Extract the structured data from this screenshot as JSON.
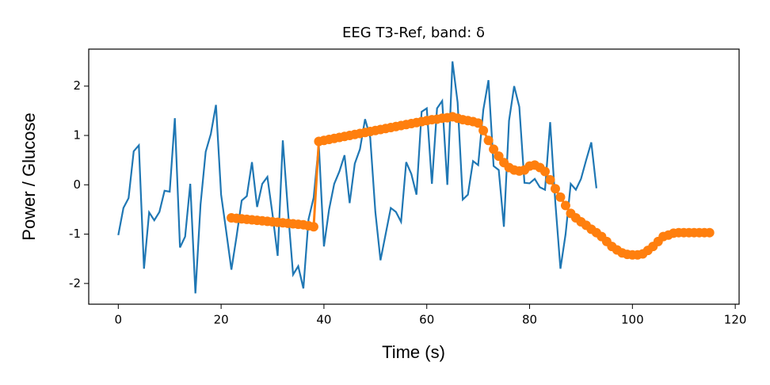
{
  "chart_data": {
    "type": "line",
    "title": "EEG T3-Ref, band: δ",
    "xlabel": "Time (s)",
    "ylabel": "Power / Glucose",
    "xlim": [
      -5.75,
      120.75
    ],
    "ylim": [
      -2.42,
      2.75
    ],
    "xticks": [
      0,
      20,
      40,
      60,
      80,
      100,
      120
    ],
    "yticks": [
      -2,
      -1,
      0,
      1,
      2
    ],
    "series": [
      {
        "color": "#1f77b4",
        "markers": false,
        "x": [
          0,
          1,
          2,
          3,
          4,
          5,
          6,
          7,
          8,
          9,
          10,
          11,
          12,
          13,
          14,
          15,
          16,
          17,
          18,
          19,
          20,
          21,
          22,
          23,
          24,
          25,
          26,
          27,
          28,
          29,
          30,
          31,
          32,
          33,
          34,
          35,
          36,
          37,
          38,
          39,
          40,
          41,
          42,
          43,
          44,
          45,
          46,
          47,
          48,
          49,
          50,
          51,
          52,
          53,
          54,
          55,
          56,
          57,
          58,
          59,
          60,
          61,
          62,
          63,
          64,
          65,
          66,
          67,
          68,
          69,
          70,
          71,
          72,
          73,
          74,
          75,
          76,
          77,
          78,
          79,
          80,
          81,
          82,
          83,
          84,
          85,
          86,
          87,
          88,
          89,
          90,
          91,
          92,
          93
        ],
        "values": [
          -1.02,
          -0.47,
          -0.27,
          0.68,
          0.8,
          -1.7,
          -0.56,
          -0.72,
          -0.55,
          -0.12,
          -0.14,
          1.35,
          -1.27,
          -1.05,
          0.02,
          -2.2,
          -0.4,
          0.67,
          1.03,
          1.62,
          -0.2,
          -0.95,
          -1.72,
          -1.05,
          -0.32,
          -0.23,
          0.46,
          -0.45,
          0.02,
          0.16,
          -0.6,
          -1.44,
          0.9,
          -0.52,
          -1.82,
          -1.65,
          -2.1,
          -0.7,
          -0.26,
          0.82,
          -1.25,
          -0.5,
          0.02,
          0.27,
          0.6,
          -0.37,
          0.43,
          0.72,
          1.33,
          0.96,
          -0.55,
          -1.53,
          -1.0,
          -0.47,
          -0.55,
          -0.75,
          0.46,
          0.22,
          -0.2,
          1.48,
          1.55,
          0.02,
          1.55,
          1.7,
          0.0,
          2.5,
          1.67,
          -0.3,
          -0.2,
          0.48,
          0.4,
          1.52,
          2.12,
          0.38,
          0.3,
          -0.85,
          1.3,
          2.0,
          1.58,
          0.04,
          0.03,
          0.12,
          -0.05,
          -0.1,
          1.27,
          -0.35,
          -1.7,
          -1.0,
          0.02,
          -0.1,
          0.12,
          0.5,
          0.86,
          -0.07
        ]
      },
      {
        "color": "#ff7f0e",
        "markers": true,
        "x": [
          22,
          23,
          24,
          25,
          26,
          27,
          28,
          29,
          30,
          31,
          32,
          33,
          34,
          35,
          36,
          37,
          38,
          39,
          40,
          41,
          42,
          43,
          44,
          45,
          46,
          47,
          48,
          49,
          50,
          51,
          52,
          53,
          54,
          55,
          56,
          57,
          58,
          59,
          60,
          61,
          62,
          63,
          64,
          65,
          66,
          67,
          68,
          69,
          70,
          71,
          72,
          73,
          74,
          75,
          76,
          77,
          78,
          79,
          80,
          81,
          82,
          83,
          84,
          85,
          86,
          87,
          88,
          89,
          90,
          91,
          92,
          93,
          94,
          95,
          96,
          97,
          98,
          99,
          100,
          101,
          102,
          103,
          104,
          105,
          106,
          107,
          108,
          109,
          110,
          111,
          112,
          113,
          114,
          115
        ],
        "values": [
          -0.67,
          -0.68,
          -0.69,
          -0.7,
          -0.71,
          -0.72,
          -0.73,
          -0.74,
          -0.75,
          -0.76,
          -0.77,
          -0.78,
          -0.79,
          -0.8,
          -0.81,
          -0.83,
          -0.85,
          0.88,
          0.9,
          0.92,
          0.94,
          0.96,
          0.98,
          1.0,
          1.02,
          1.04,
          1.06,
          1.08,
          1.1,
          1.12,
          1.14,
          1.16,
          1.18,
          1.2,
          1.22,
          1.24,
          1.26,
          1.28,
          1.3,
          1.32,
          1.33,
          1.35,
          1.36,
          1.38,
          1.35,
          1.32,
          1.3,
          1.28,
          1.25,
          1.1,
          0.9,
          0.72,
          0.58,
          0.45,
          0.35,
          0.3,
          0.28,
          0.3,
          0.38,
          0.4,
          0.35,
          0.27,
          0.1,
          -0.08,
          -0.25,
          -0.42,
          -0.58,
          -0.67,
          -0.75,
          -0.82,
          -0.9,
          -0.97,
          -1.05,
          -1.15,
          -1.25,
          -1.32,
          -1.38,
          -1.41,
          -1.42,
          -1.42,
          -1.4,
          -1.33,
          -1.25,
          -1.15,
          -1.05,
          -1.02,
          -0.98,
          -0.97,
          -0.97,
          -0.97,
          -0.97,
          -0.97,
          -0.97,
          -0.97
        ]
      }
    ]
  }
}
